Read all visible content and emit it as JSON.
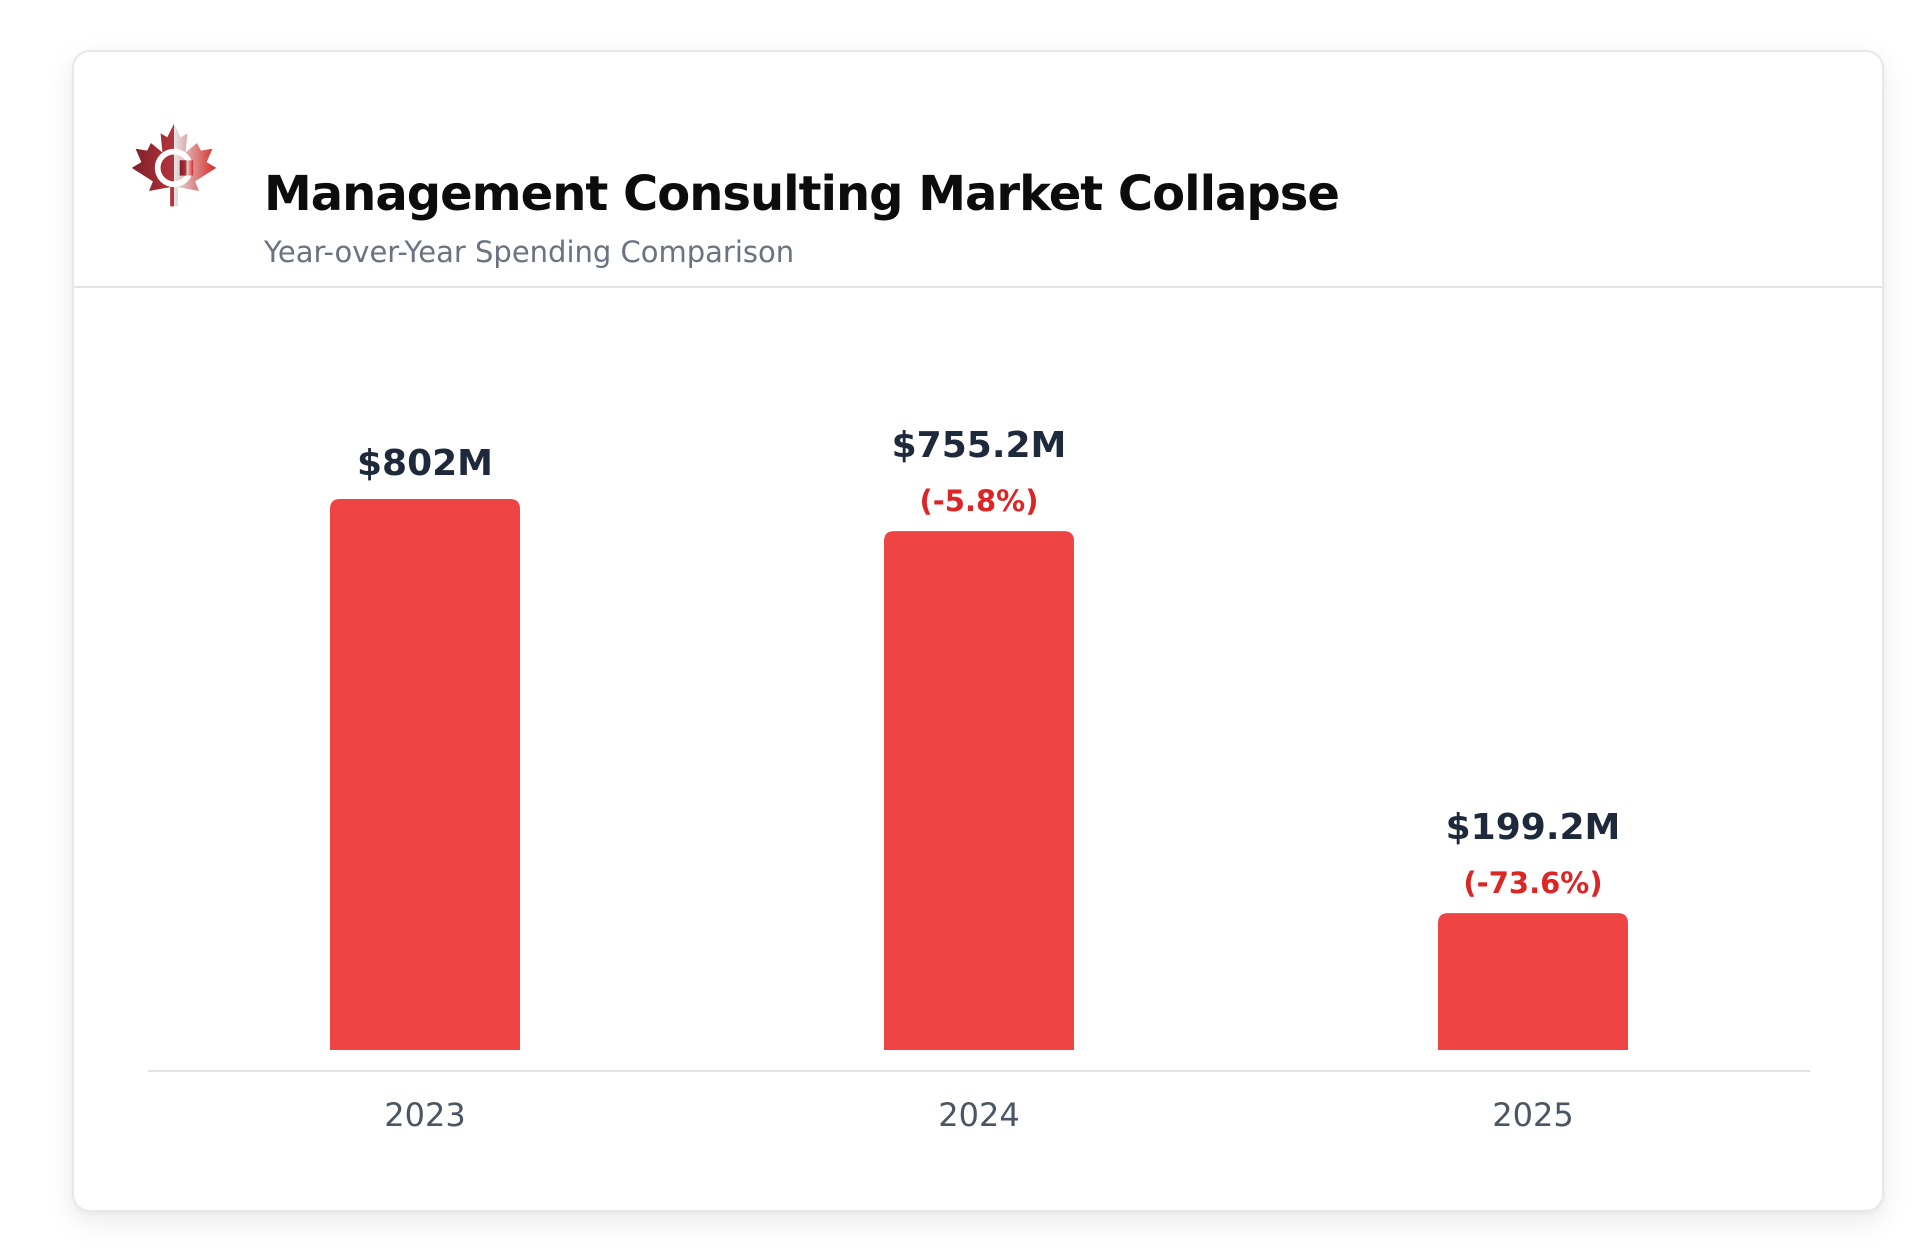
{
  "header": {
    "title": "Management Consulting Market Collapse",
    "subtitle": "Year-over-Year Spending Comparison"
  },
  "colors": {
    "bar": "#ef4444",
    "change_text": "#dc2626",
    "value_text": "#1e293b",
    "logo_red": "#d62828",
    "logo_dark": "#7a1f28"
  },
  "logo": {
    "icon": "maple-leaf-c-logo-icon",
    "letter": "C"
  },
  "chart_data": {
    "type": "bar",
    "title": "Management Consulting Market Collapse",
    "subtitle": "Year-over-Year Spending Comparison",
    "xlabel": "",
    "ylabel": "",
    "categories": [
      "2023",
      "2024",
      "2025"
    ],
    "values": [
      802,
      755.2,
      199.2
    ],
    "value_labels": [
      "$802M",
      "$755.2M",
      "$199.2M"
    ],
    "change_labels": [
      "",
      "(-5.8%)",
      "(-73.6%)"
    ],
    "ylim": [
      0,
      802
    ],
    "grid": false,
    "legend": "none"
  }
}
